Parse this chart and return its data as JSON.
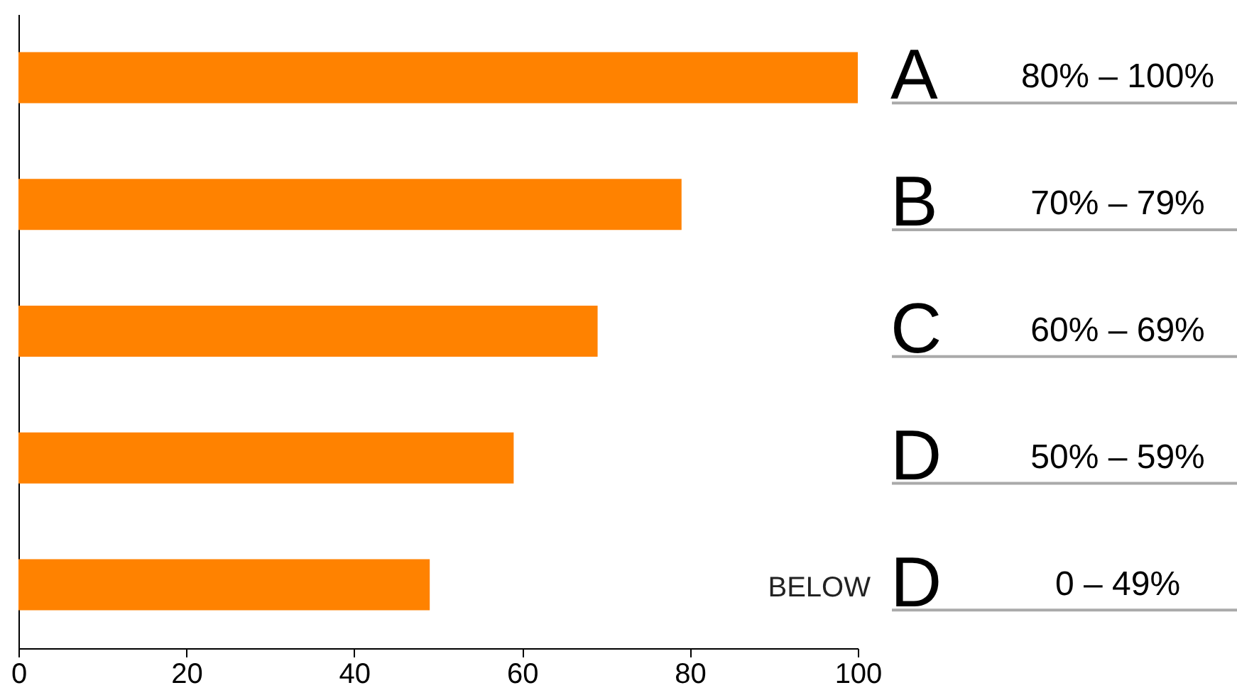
{
  "chart_data": {
    "type": "bar",
    "orientation": "horizontal",
    "categories": [
      "A",
      "B",
      "C",
      "D",
      "BELOW D"
    ],
    "values": [
      100,
      79,
      69,
      59,
      49
    ],
    "color": "#ff8200",
    "xlim": [
      0,
      100
    ],
    "xticks": [
      0,
      20,
      40,
      60,
      80,
      100
    ],
    "annotations": [
      "80% – 100%",
      "70% – 79%",
      "60% – 69%",
      "50% – 59%",
      "0 – 49%"
    ],
    "grid": false
  }
}
